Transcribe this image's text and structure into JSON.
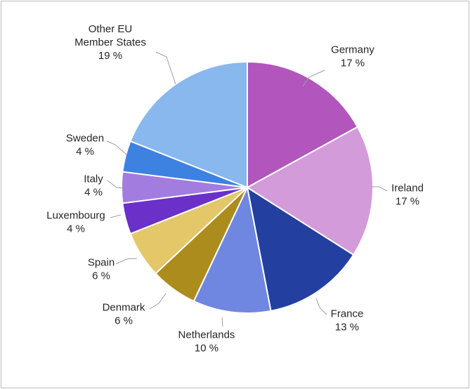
{
  "chart_data": {
    "type": "pie",
    "title": "",
    "slices": [
      {
        "label": [
          "Germany"
        ],
        "value": 17,
        "value_text": "17 %",
        "color": "#b255bd"
      },
      {
        "label": [
          "Ireland"
        ],
        "value": 17,
        "value_text": "17 %",
        "color": "#d39bd9"
      },
      {
        "label": [
          "France"
        ],
        "value": 13,
        "value_text": "13 %",
        "color": "#2340a0"
      },
      {
        "label": [
          "Netherlands"
        ],
        "value": 10,
        "value_text": "10 %",
        "color": "#6f87e0"
      },
      {
        "label": [
          "Denmark"
        ],
        "value": 6,
        "value_text": "6 %",
        "color": "#ad8c1e"
      },
      {
        "label": [
          "Spain"
        ],
        "value": 6,
        "value_text": "6 %",
        "color": "#e3c769"
      },
      {
        "label": [
          "Luxembourg"
        ],
        "value": 4,
        "value_text": "4 %",
        "color": "#6a30c8"
      },
      {
        "label": [
          "Italy"
        ],
        "value": 4,
        "value_text": "4 %",
        "color": "#a27ddf"
      },
      {
        "label": [
          "Sweden"
        ],
        "value": 4,
        "value_text": "4 %",
        "color": "#3d82e0"
      },
      {
        "label": [
          "Other EU",
          "Member States"
        ],
        "value": 19,
        "value_text": "19 %",
        "color": "#88b8ee"
      }
    ]
  }
}
